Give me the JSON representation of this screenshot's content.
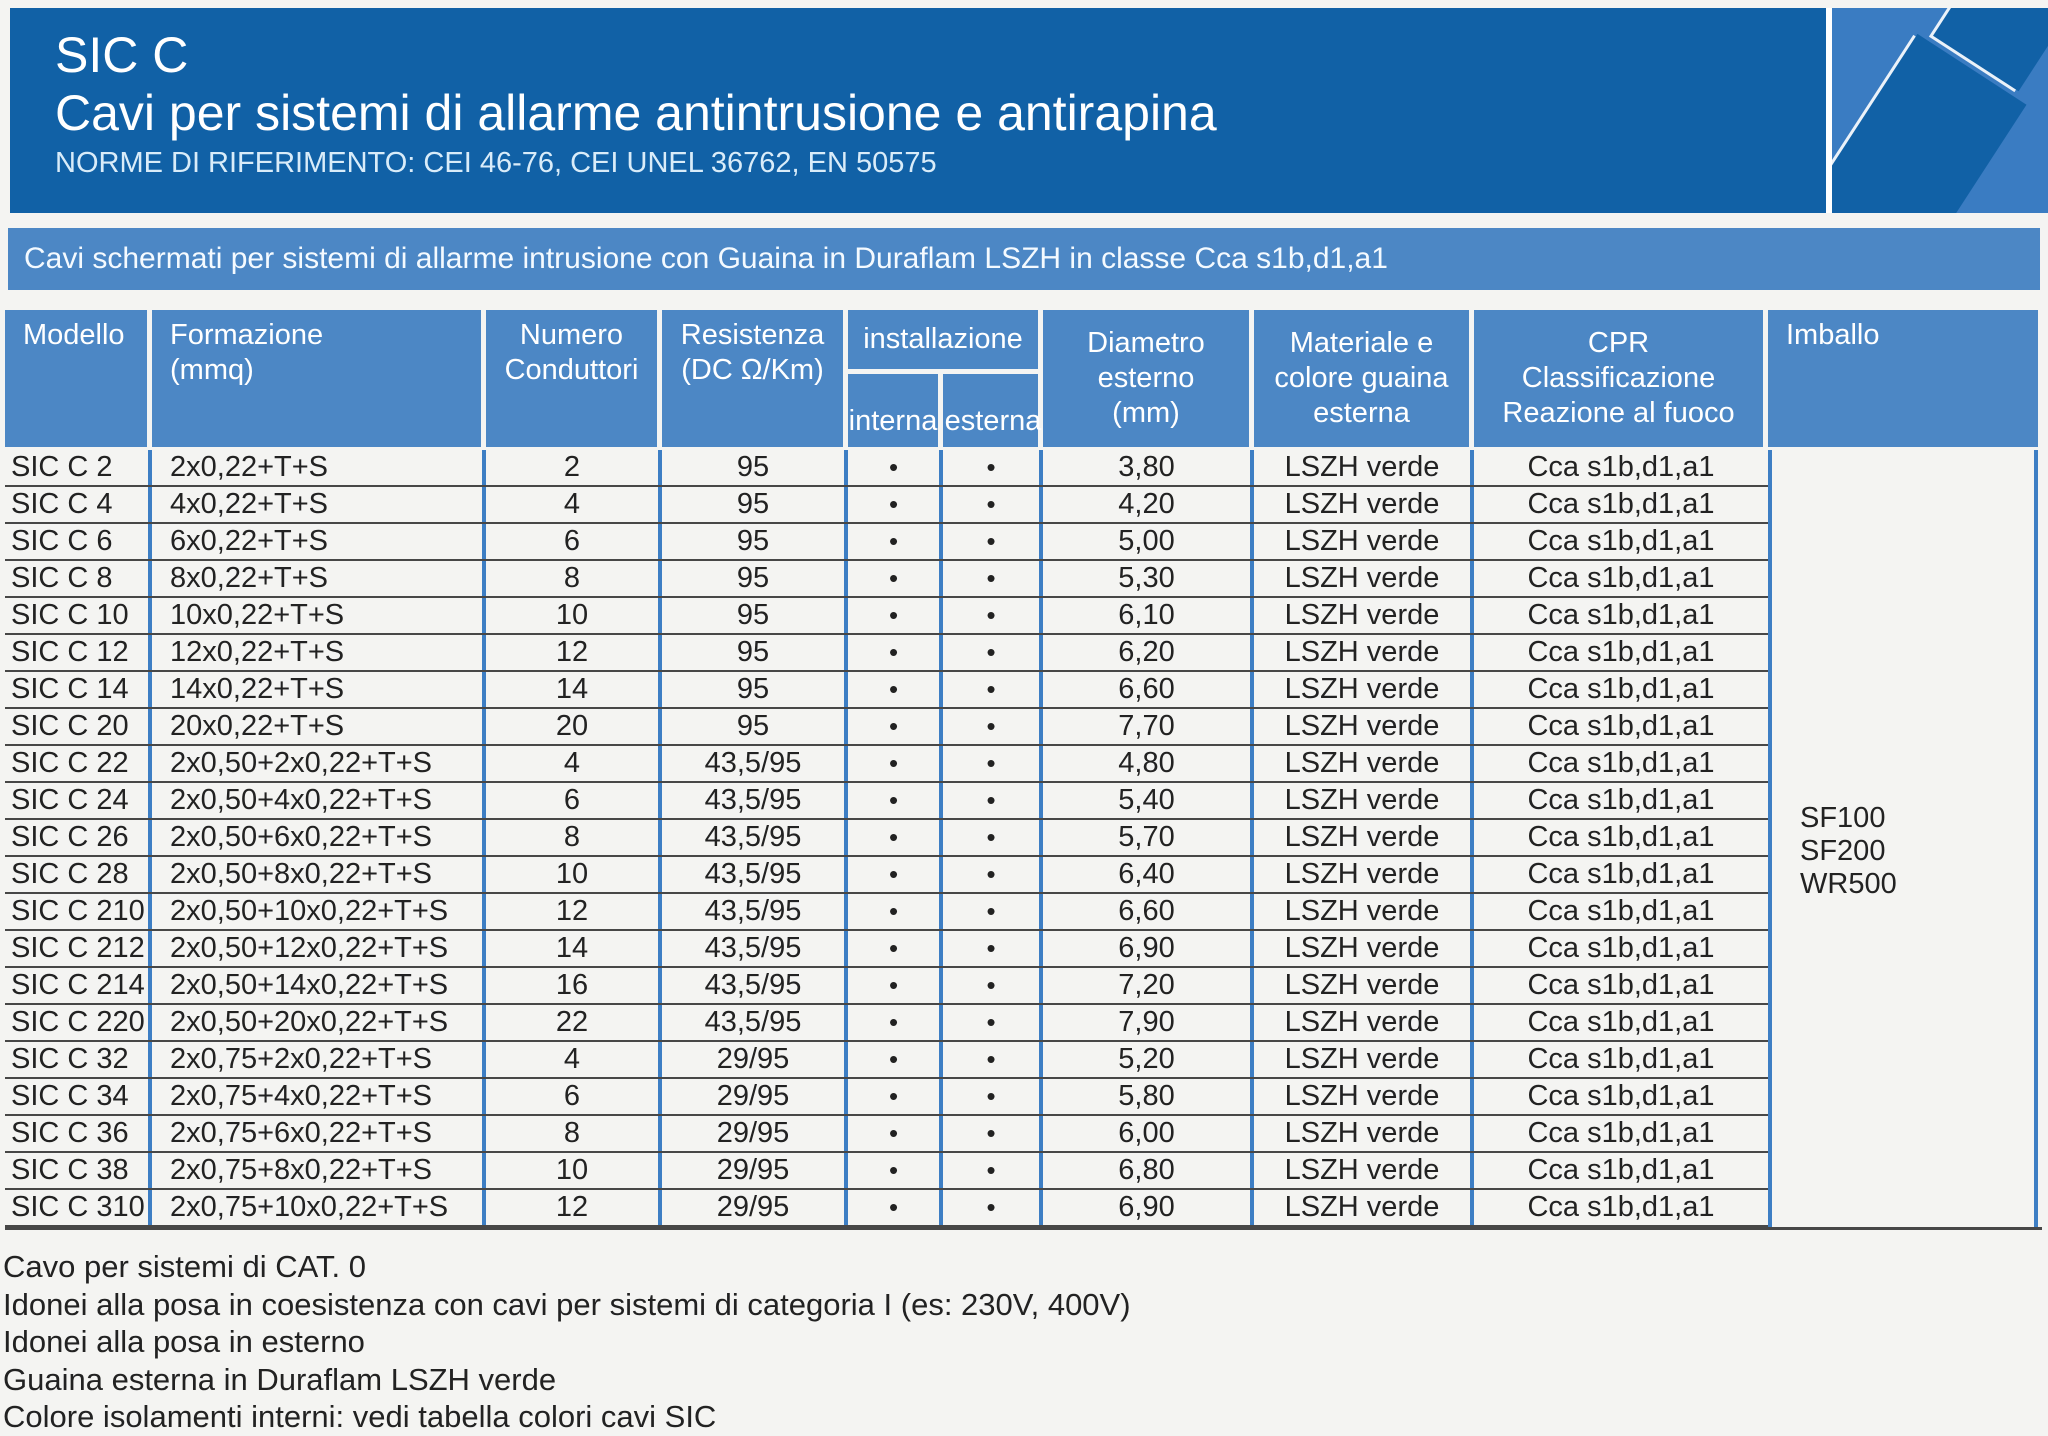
{
  "header": {
    "product_code": "SIC C",
    "title": "Cavi per sistemi di allarme antintrusione e antirapina",
    "norms": "NORME DI RIFERIMENTO: CEI 46-76, CEI UNEL 36762, EN 50575"
  },
  "banner": {
    "text": "Cavi schermati per sistemi di allarme intrusione con Guaina in Duraflam LSZH in classe Cca s1b,d1,a1"
  },
  "table": {
    "headers": {
      "modello": "Modello",
      "formazione": "Formazione\n(mmq)",
      "numero": "Numero\nConduttori",
      "resistenza": "Resistenza\n(DC Ω/Km)",
      "installazione": "installazione",
      "interna": "interna",
      "esterna": "esterna",
      "diametro": "Diametro\nesterno\n(mm)",
      "materiale": "Materiale e\ncolore guaina\nesterna",
      "cpr": "CPR\nClassificazione\nReazione al fuoco",
      "imballo": "Imballo"
    },
    "rows": [
      {
        "model": "SIC C 2",
        "formation": "2x0,22+T+S",
        "conductors": "2",
        "resistance": "95",
        "install_internal": "•",
        "install_external": "•",
        "diameter": "3,80",
        "sheath": "LSZH verde",
        "cpr": "Cca s1b,d1,a1"
      },
      {
        "model": "SIC C 4",
        "formation": "4x0,22+T+S",
        "conductors": "4",
        "resistance": "95",
        "install_internal": "•",
        "install_external": "•",
        "diameter": "4,20",
        "sheath": "LSZH verde",
        "cpr": "Cca s1b,d1,a1"
      },
      {
        "model": "SIC C 6",
        "formation": "6x0,22+T+S",
        "conductors": "6",
        "resistance": "95",
        "install_internal": "•",
        "install_external": "•",
        "diameter": "5,00",
        "sheath": "LSZH verde",
        "cpr": "Cca s1b,d1,a1"
      },
      {
        "model": "SIC C 8",
        "formation": "8x0,22+T+S",
        "conductors": "8",
        "resistance": "95",
        "install_internal": "•",
        "install_external": "•",
        "diameter": "5,30",
        "sheath": "LSZH verde",
        "cpr": "Cca s1b,d1,a1"
      },
      {
        "model": "SIC C 10",
        "formation": "10x0,22+T+S",
        "conductors": "10",
        "resistance": "95",
        "install_internal": "•",
        "install_external": "•",
        "diameter": "6,10",
        "sheath": "LSZH verde",
        "cpr": "Cca s1b,d1,a1"
      },
      {
        "model": "SIC C 12",
        "formation": "12x0,22+T+S",
        "conductors": "12",
        "resistance": "95",
        "install_internal": "•",
        "install_external": "•",
        "diameter": "6,20",
        "sheath": "LSZH verde",
        "cpr": "Cca s1b,d1,a1"
      },
      {
        "model": "SIC C 14",
        "formation": "14x0,22+T+S",
        "conductors": "14",
        "resistance": "95",
        "install_internal": "•",
        "install_external": "•",
        "diameter": "6,60",
        "sheath": "LSZH verde",
        "cpr": "Cca s1b,d1,a1"
      },
      {
        "model": "SIC C 20",
        "formation": "20x0,22+T+S",
        "conductors": "20",
        "resistance": "95",
        "install_internal": "•",
        "install_external": "•",
        "diameter": "7,70",
        "sheath": "LSZH verde",
        "cpr": "Cca s1b,d1,a1"
      },
      {
        "model": "SIC C 22",
        "formation": "2x0,50+2x0,22+T+S",
        "conductors": "4",
        "resistance": "43,5/95",
        "install_internal": "•",
        "install_external": "•",
        "diameter": "4,80",
        "sheath": "LSZH verde",
        "cpr": "Cca s1b,d1,a1"
      },
      {
        "model": "SIC C 24",
        "formation": "2x0,50+4x0,22+T+S",
        "conductors": "6",
        "resistance": "43,5/95",
        "install_internal": "•",
        "install_external": "•",
        "diameter": "5,40",
        "sheath": "LSZH verde",
        "cpr": "Cca s1b,d1,a1"
      },
      {
        "model": "SIC C 26",
        "formation": "2x0,50+6x0,22+T+S",
        "conductors": "8",
        "resistance": "43,5/95",
        "install_internal": "•",
        "install_external": "•",
        "diameter": "5,70",
        "sheath": "LSZH verde",
        "cpr": "Cca s1b,d1,a1"
      },
      {
        "model": "SIC C 28",
        "formation": "2x0,50+8x0,22+T+S",
        "conductors": "10",
        "resistance": "43,5/95",
        "install_internal": "•",
        "install_external": "•",
        "diameter": "6,40",
        "sheath": "LSZH verde",
        "cpr": "Cca s1b,d1,a1"
      },
      {
        "model": "SIC C 210",
        "formation": "2x0,50+10x0,22+T+S",
        "conductors": "12",
        "resistance": "43,5/95",
        "install_internal": "•",
        "install_external": "•",
        "diameter": "6,60",
        "sheath": "LSZH verde",
        "cpr": "Cca s1b,d1,a1"
      },
      {
        "model": "SIC C 212",
        "formation": "2x0,50+12x0,22+T+S",
        "conductors": "14",
        "resistance": "43,5/95",
        "install_internal": "•",
        "install_external": "•",
        "diameter": "6,90",
        "sheath": "LSZH verde",
        "cpr": "Cca s1b,d1,a1"
      },
      {
        "model": "SIC C 214",
        "formation": "2x0,50+14x0,22+T+S",
        "conductors": "16",
        "resistance": "43,5/95",
        "install_internal": "•",
        "install_external": "•",
        "diameter": "7,20",
        "sheath": "LSZH verde",
        "cpr": "Cca s1b,d1,a1"
      },
      {
        "model": "SIC C 220",
        "formation": "2x0,50+20x0,22+T+S",
        "conductors": "22",
        "resistance": "43,5/95",
        "install_internal": "•",
        "install_external": "•",
        "diameter": "7,90",
        "sheath": "LSZH verde",
        "cpr": "Cca s1b,d1,a1"
      },
      {
        "model": "SIC C 32",
        "formation": "2x0,75+2x0,22+T+S",
        "conductors": "4",
        "resistance": "29/95",
        "install_internal": "•",
        "install_external": "•",
        "diameter": "5,20",
        "sheath": "LSZH verde",
        "cpr": "Cca s1b,d1,a1"
      },
      {
        "model": "SIC C 34",
        "formation": "2x0,75+4x0,22+T+S",
        "conductors": "6",
        "resistance": "29/95",
        "install_internal": "•",
        "install_external": "•",
        "diameter": "5,80",
        "sheath": "LSZH verde",
        "cpr": "Cca s1b,d1,a1"
      },
      {
        "model": "SIC C 36",
        "formation": "2x0,75+6x0,22+T+S",
        "conductors": "8",
        "resistance": "29/95",
        "install_internal": "•",
        "install_external": "•",
        "diameter": "6,00",
        "sheath": "LSZH verde",
        "cpr": "Cca s1b,d1,a1"
      },
      {
        "model": "SIC C 38",
        "formation": "2x0,75+8x0,22+T+S",
        "conductors": "10",
        "resistance": "29/95",
        "install_internal": "•",
        "install_external": "•",
        "diameter": "6,80",
        "sheath": "LSZH verde",
        "cpr": "Cca s1b,d1,a1"
      },
      {
        "model": "SIC C 310",
        "formation": "2x0,75+10x0,22+T+S",
        "conductors": "12",
        "resistance": "29/95",
        "install_internal": "•",
        "install_external": "•",
        "diameter": "6,90",
        "sheath": "LSZH verde",
        "cpr": "Cca s1b,d1,a1"
      }
    ],
    "imballo_values": [
      "SF100",
      "SF200",
      "WR500"
    ]
  },
  "footnotes": [
    "Cavo per sistemi di CAT. 0",
    "Idonei alla posa in coesistenza con cavi per sistemi di categoria I (es: 230V, 400V)",
    "Idonei alla posa in esterno",
    "Guaina esterna in Duraflam LSZH verde",
    "Colore isolamenti interni: vedi tabella colori cavi SIC"
  ],
  "colors": {
    "band": "#1161a6",
    "cell": "#4c87c5",
    "grid": "#3d7ec4",
    "decor": "#3a7cc2"
  }
}
